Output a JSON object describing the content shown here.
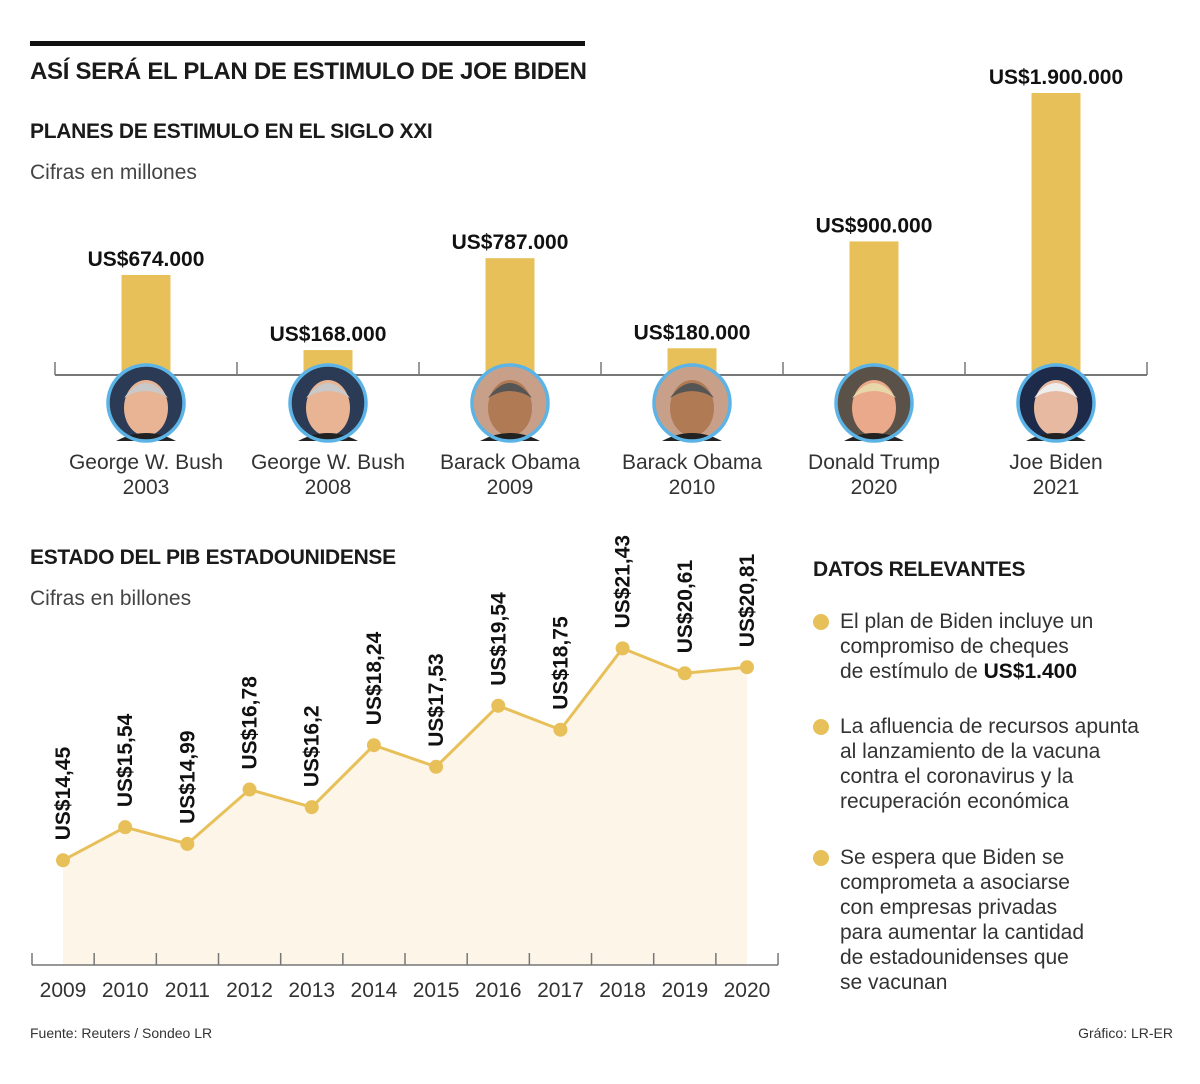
{
  "header": {
    "title": "ASÍ SERÁ EL PLAN DE ESTIMULO DE JOE BIDEN"
  },
  "colors": {
    "bar": "#E8C05A",
    "line": "#E8C05A",
    "area": "#FCF5E8",
    "photo_border": "#5BB3E6",
    "text": "#1a1a1a"
  },
  "chart_data": [
    {
      "type": "bar",
      "title": "PLANES DE ESTIMULO EN EL SIGLO XXI",
      "subtitle": "Cifras en millones",
      "categories": [
        {
          "name": "George W. Bush",
          "year": "2003"
        },
        {
          "name": "George W. Bush",
          "year": "2008"
        },
        {
          "name": "Barack Obama",
          "year": "2009"
        },
        {
          "name": "Barack Obama",
          "year": "2010"
        },
        {
          "name": "Donald Trump",
          "year": "2020"
        },
        {
          "name": "Joe Biden",
          "year": "2021"
        }
      ],
      "values": [
        674000,
        168000,
        787000,
        180000,
        900000,
        1900000
      ],
      "data_labels": [
        "US$674.000",
        "US$168.000",
        "US$787.000",
        "US$180.000",
        "US$900.000",
        "US$1.900.000"
      ],
      "photos": [
        "portrait-bush",
        "portrait-bush",
        "portrait-obama",
        "portrait-obama",
        "portrait-trump",
        "portrait-biden"
      ],
      "ylim": [
        0,
        1900000
      ],
      "grid": false
    },
    {
      "type": "area",
      "title": "ESTADO DEL PIB ESTADOUNIDENSE",
      "subtitle": "Cifras en billones",
      "x": [
        "2009",
        "2010",
        "2011",
        "2012",
        "2013",
        "2014",
        "2015",
        "2016",
        "2017",
        "2018",
        "2019",
        "2020"
      ],
      "values": [
        14.45,
        15.54,
        14.99,
        16.78,
        16.2,
        18.24,
        17.53,
        19.54,
        18.75,
        21.43,
        20.61,
        20.81
      ],
      "data_labels": [
        "US$14,45",
        "US$15,54",
        "US$14,99",
        "US$16,78",
        "US$16,2",
        "US$18,24",
        "US$17,53",
        "US$19,54",
        "US$18,75",
        "US$21,43",
        "US$20,61",
        "US$20,81"
      ],
      "ylim": [
        11,
        25
      ],
      "grid": false
    }
  ],
  "facts": {
    "title": "DATOS RELEVANTES",
    "items": [
      {
        "text": "El plan de Biden incluye un\ncompromiso de cheques\nde estímulo de ",
        "bold": "US$1.400"
      },
      {
        "text": "La afluencia de recursos apunta\nal lanzamiento de la vacuna\ncontra el coronavirus y la\nrecuperación económica",
        "bold": ""
      },
      {
        "text": "Se espera que Biden se\ncomprometa a asociarse\ncon empresas privadas\npara aumentar la cantidad\nde estadounidenses que\nse vacunan",
        "bold": ""
      }
    ]
  },
  "footer": {
    "source": "Fuente: Reuters / Sondeo LR",
    "credit": "Gráfico: LR-ER"
  }
}
